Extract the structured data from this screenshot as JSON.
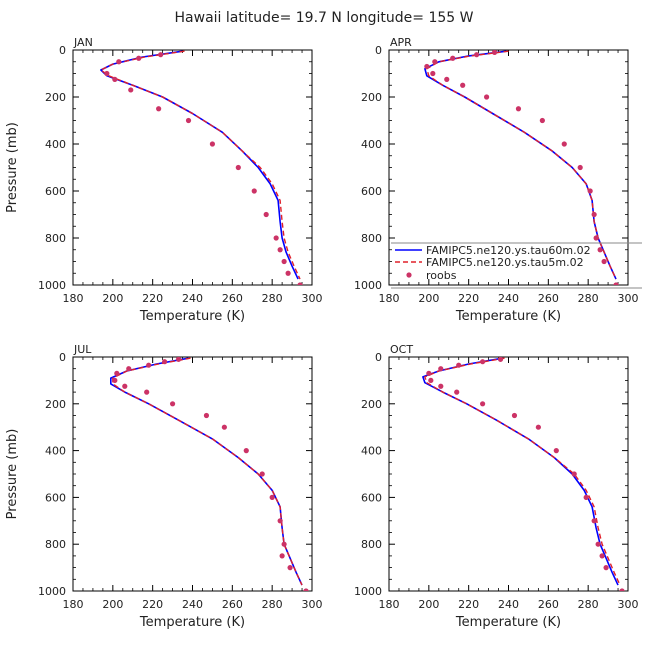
{
  "title": "Hawaii  latitude= 19.7 N longitude= 155 W",
  "legend": {
    "entries": [
      "FAMIPC5.ne120.ys.tau60m.02",
      "FAMIPC5.ne120.ys.tau5m.02",
      "roobs"
    ]
  },
  "colors": {
    "tau60m": "#0000ff",
    "tau5m": "#e0202a",
    "roobs": "#cc3366",
    "axis": "#000000"
  },
  "chart_data": [
    {
      "type": "line",
      "panel": "JAN",
      "xlabel": "Temperature (K)",
      "ylabel": "Pressure (mb)",
      "xlim": [
        180,
        300
      ],
      "ylim": [
        1000,
        0
      ],
      "xticks": [
        "180",
        "200",
        "220",
        "240",
        "260",
        "280",
        "300"
      ],
      "yticks": [
        "0",
        "200",
        "400",
        "600",
        "800",
        "1000"
      ],
      "series": [
        {
          "name": "FAMIPC5.ne120.ys.tau60m.02",
          "style": "solid",
          "x": [
            235,
            215,
            200,
            194,
            197,
            210,
            225,
            240,
            255,
            265,
            273,
            279,
            283,
            284,
            285,
            287,
            290,
            293
          ],
          "y": [
            5,
            30,
            60,
            85,
            110,
            150,
            200,
            270,
            350,
            430,
            500,
            570,
            640,
            730,
            800,
            860,
            920,
            975
          ]
        },
        {
          "name": "FAMIPC5.ne120.ys.tau5m.02",
          "style": "dashed",
          "x": [
            236,
            216,
            200,
            194,
            198,
            210,
            225,
            240,
            255,
            265,
            274,
            280,
            284,
            285,
            286,
            288,
            291,
            294
          ],
          "y": [
            5,
            30,
            60,
            85,
            110,
            150,
            200,
            270,
            350,
            430,
            500,
            570,
            640,
            730,
            800,
            860,
            920,
            975
          ]
        },
        {
          "name": "roobs",
          "style": "points",
          "x": [
            224,
            213,
            203,
            197,
            201,
            209,
            223,
            238,
            250,
            263,
            271,
            277,
            282,
            284,
            286,
            288,
            294
          ],
          "y": [
            20,
            35,
            50,
            100,
            125,
            170,
            250,
            300,
            400,
            500,
            600,
            700,
            800,
            850,
            900,
            950,
            1000
          ]
        }
      ]
    },
    {
      "type": "line",
      "panel": "APR",
      "xlabel": "Temperature (K)",
      "ylabel": "Pressure (mb)",
      "xlim": [
        180,
        300
      ],
      "ylim": [
        1000,
        0
      ],
      "xticks": [
        "180",
        "200",
        "220",
        "240",
        "260",
        "280",
        "300"
      ],
      "yticks": [
        "0",
        "200",
        "400",
        "600",
        "800",
        "1000"
      ],
      "series": [
        {
          "name": "FAMIPC5.ne120.ys.tau60m.02",
          "style": "solid",
          "x": [
            239,
            220,
            205,
            198,
            199,
            207,
            218,
            232,
            248,
            262,
            272,
            279,
            282,
            283,
            285,
            288,
            291,
            294
          ],
          "y": [
            5,
            25,
            50,
            80,
            110,
            150,
            200,
            270,
            350,
            430,
            500,
            570,
            640,
            730,
            800,
            860,
            920,
            975
          ]
        },
        {
          "name": "FAMIPC5.ne120.ys.tau5m.02",
          "style": "dashed",
          "x": [
            240,
            221,
            205,
            199,
            200,
            207,
            218,
            232,
            248,
            262,
            272,
            279,
            282,
            283,
            285,
            288,
            291,
            294
          ],
          "y": [
            5,
            25,
            50,
            80,
            110,
            150,
            200,
            270,
            350,
            430,
            500,
            570,
            640,
            730,
            800,
            860,
            920,
            975
          ]
        },
        {
          "name": "roobs",
          "style": "points",
          "x": [
            233,
            224,
            212,
            203,
            199,
            202,
            209,
            217,
            229,
            245,
            257,
            268,
            276,
            281,
            283,
            284,
            286,
            288,
            294
          ],
          "y": [
            10,
            20,
            35,
            50,
            70,
            100,
            125,
            150,
            200,
            250,
            300,
            400,
            500,
            600,
            700,
            800,
            850,
            900,
            1000
          ]
        }
      ]
    },
    {
      "type": "line",
      "panel": "JUL",
      "xlabel": "Temperature (K)",
      "ylabel": "Pressure (mb)",
      "xlim": [
        180,
        300
      ],
      "ylim": [
        1000,
        0
      ],
      "xticks": [
        "180",
        "200",
        "220",
        "240",
        "260",
        "280",
        "300"
      ],
      "yticks": [
        "0",
        "200",
        "400",
        "600",
        "800",
        "1000"
      ],
      "series": [
        {
          "name": "FAMIPC5.ne120.ys.tau60m.02",
          "style": "solid",
          "x": [
            238,
            222,
            207,
            199,
            199,
            206,
            218,
            233,
            250,
            263,
            273,
            280,
            284,
            285,
            286,
            289,
            292,
            295
          ],
          "y": [
            5,
            30,
            60,
            90,
            115,
            150,
            200,
            270,
            350,
            430,
            500,
            570,
            640,
            730,
            800,
            860,
            920,
            975
          ]
        },
        {
          "name": "FAMIPC5.ne120.ys.tau5m.02",
          "style": "dashed",
          "x": [
            239,
            223,
            207,
            200,
            200,
            206,
            218,
            233,
            250,
            263,
            273,
            280,
            284,
            285,
            286,
            289,
            292,
            295
          ],
          "y": [
            5,
            30,
            60,
            90,
            115,
            150,
            200,
            270,
            350,
            430,
            500,
            570,
            640,
            730,
            800,
            860,
            920,
            975
          ]
        },
        {
          "name": "roobs",
          "style": "points",
          "x": [
            233,
            226,
            218,
            208,
            202,
            201,
            206,
            217,
            230,
            247,
            256,
            267,
            275,
            280,
            284,
            286,
            285,
            289,
            297
          ],
          "y": [
            10,
            20,
            35,
            50,
            70,
            100,
            125,
            150,
            200,
            250,
            300,
            400,
            500,
            600,
            700,
            800,
            850,
            900,
            1000
          ]
        }
      ]
    },
    {
      "type": "line",
      "panel": "OCT",
      "xlabel": "Temperature (K)",
      "ylabel": "Pressure (mb)",
      "xlim": [
        180,
        300
      ],
      "ylim": [
        1000,
        0
      ],
      "xticks": [
        "180",
        "200",
        "220",
        "240",
        "260",
        "280",
        "300"
      ],
      "yticks": [
        "0",
        "200",
        "400",
        "600",
        "800",
        "1000"
      ],
      "series": [
        {
          "name": "FAMIPC5.ne120.ys.tau60m.02",
          "style": "solid",
          "x": [
            237,
            220,
            205,
            197,
            198,
            207,
            219,
            234,
            250,
            263,
            272,
            278,
            282,
            284,
            286,
            289,
            292,
            295
          ],
          "y": [
            5,
            30,
            60,
            85,
            110,
            150,
            200,
            270,
            350,
            430,
            500,
            570,
            640,
            730,
            800,
            860,
            920,
            975
          ]
        },
        {
          "name": "FAMIPC5.ne120.ys.tau5m.02",
          "style": "dashed",
          "x": [
            238,
            221,
            205,
            198,
            199,
            207,
            219,
            234,
            250,
            263,
            273,
            279,
            283,
            285,
            287,
            290,
            293,
            296
          ],
          "y": [
            5,
            30,
            60,
            85,
            110,
            150,
            200,
            270,
            350,
            430,
            500,
            570,
            640,
            730,
            800,
            860,
            920,
            975
          ]
        },
        {
          "name": "roobs",
          "style": "points",
          "x": [
            236,
            227,
            215,
            206,
            200,
            201,
            206,
            214,
            227,
            243,
            255,
            264,
            273,
            279,
            283,
            285,
            287,
            289,
            297
          ],
          "y": [
            10,
            20,
            35,
            50,
            70,
            100,
            125,
            150,
            200,
            250,
            300,
            400,
            500,
            600,
            700,
            800,
            850,
            900,
            1000
          ]
        }
      ]
    }
  ]
}
